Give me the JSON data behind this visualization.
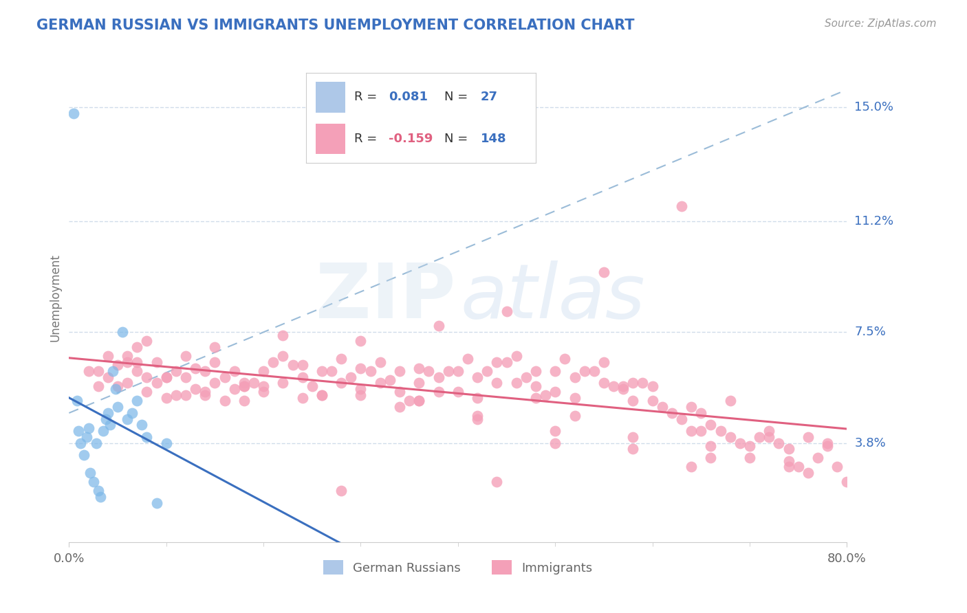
{
  "title": "GERMAN RUSSIAN VS IMMIGRANTS UNEMPLOYMENT CORRELATION CHART",
  "source_text": "Source: ZipAtlas.com",
  "ylabel": "Unemployment",
  "x_tick_labels": [
    "0.0%",
    "80.0%"
  ],
  "y_tick_labels": [
    "3.8%",
    "7.5%",
    "11.2%",
    "15.0%"
  ],
  "y_tick_values": [
    0.038,
    0.075,
    0.112,
    0.15
  ],
  "x_min": 0.0,
  "x_max": 0.8,
  "y_min": 0.005,
  "y_max": 0.168,
  "blue_scatter_color": "#7db8e8",
  "pink_scatter_color": "#f4a0b8",
  "blue_line_color": "#3a6fbf",
  "pink_line_color": "#e06080",
  "dashed_line_color": "#9bbcd8",
  "title_color": "#3a6fbf",
  "grid_color": "#d0dcea",
  "background_color": "#ffffff",
  "german_russian_x": [
    0.005,
    0.008,
    0.01,
    0.012,
    0.015,
    0.018,
    0.02,
    0.022,
    0.025,
    0.028,
    0.03,
    0.032,
    0.035,
    0.038,
    0.04,
    0.042,
    0.045,
    0.048,
    0.05,
    0.055,
    0.06,
    0.065,
    0.07,
    0.075,
    0.08,
    0.09,
    0.1
  ],
  "german_russian_y": [
    0.148,
    0.052,
    0.042,
    0.038,
    0.034,
    0.04,
    0.043,
    0.028,
    0.025,
    0.038,
    0.022,
    0.02,
    0.042,
    0.046,
    0.048,
    0.044,
    0.062,
    0.056,
    0.05,
    0.075,
    0.046,
    0.048,
    0.052,
    0.044,
    0.04,
    0.018,
    0.038
  ],
  "immigrants_x": [
    0.02,
    0.03,
    0.04,
    0.05,
    0.06,
    0.06,
    0.07,
    0.07,
    0.08,
    0.08,
    0.09,
    0.09,
    0.1,
    0.1,
    0.11,
    0.11,
    0.12,
    0.12,
    0.13,
    0.13,
    0.14,
    0.14,
    0.15,
    0.15,
    0.16,
    0.16,
    0.17,
    0.17,
    0.18,
    0.18,
    0.19,
    0.2,
    0.2,
    0.21,
    0.22,
    0.22,
    0.23,
    0.24,
    0.24,
    0.25,
    0.26,
    0.26,
    0.27,
    0.28,
    0.28,
    0.29,
    0.3,
    0.3,
    0.31,
    0.32,
    0.32,
    0.33,
    0.34,
    0.34,
    0.35,
    0.36,
    0.36,
    0.37,
    0.38,
    0.38,
    0.39,
    0.4,
    0.4,
    0.41,
    0.42,
    0.42,
    0.43,
    0.44,
    0.44,
    0.45,
    0.46,
    0.46,
    0.47,
    0.48,
    0.48,
    0.49,
    0.5,
    0.5,
    0.51,
    0.52,
    0.52,
    0.53,
    0.54,
    0.55,
    0.55,
    0.56,
    0.57,
    0.58,
    0.58,
    0.59,
    0.6,
    0.6,
    0.61,
    0.62,
    0.63,
    0.64,
    0.65,
    0.65,
    0.66,
    0.67,
    0.68,
    0.69,
    0.7,
    0.71,
    0.72,
    0.73,
    0.74,
    0.75,
    0.76,
    0.77,
    0.78,
    0.79,
    0.8,
    0.63,
    0.55,
    0.45,
    0.38,
    0.3,
    0.22,
    0.15,
    0.08,
    0.05,
    0.03,
    0.04,
    0.06,
    0.1,
    0.14,
    0.18,
    0.24,
    0.3,
    0.36,
    0.42,
    0.5,
    0.58,
    0.66,
    0.74,
    0.5,
    0.58,
    0.66,
    0.74,
    0.42,
    0.34,
    0.26,
    0.2,
    0.12,
    0.07,
    0.18,
    0.36,
    0.52,
    0.64,
    0.72,
    0.78,
    0.48,
    0.57,
    0.68,
    0.76,
    0.7,
    0.64,
    0.44,
    0.28
  ],
  "immigrants_y": [
    0.062,
    0.057,
    0.06,
    0.064,
    0.067,
    0.058,
    0.07,
    0.062,
    0.072,
    0.055,
    0.065,
    0.058,
    0.06,
    0.053,
    0.054,
    0.062,
    0.054,
    0.067,
    0.063,
    0.056,
    0.062,
    0.055,
    0.065,
    0.058,
    0.06,
    0.052,
    0.056,
    0.062,
    0.052,
    0.058,
    0.058,
    0.062,
    0.055,
    0.065,
    0.067,
    0.058,
    0.064,
    0.06,
    0.053,
    0.057,
    0.054,
    0.062,
    0.062,
    0.066,
    0.058,
    0.06,
    0.056,
    0.063,
    0.062,
    0.065,
    0.058,
    0.059,
    0.062,
    0.055,
    0.052,
    0.058,
    0.063,
    0.062,
    0.06,
    0.055,
    0.062,
    0.062,
    0.055,
    0.066,
    0.06,
    0.053,
    0.062,
    0.065,
    0.058,
    0.065,
    0.067,
    0.058,
    0.06,
    0.057,
    0.053,
    0.054,
    0.062,
    0.055,
    0.066,
    0.06,
    0.053,
    0.062,
    0.062,
    0.065,
    0.058,
    0.057,
    0.056,
    0.052,
    0.058,
    0.058,
    0.057,
    0.052,
    0.05,
    0.048,
    0.046,
    0.05,
    0.048,
    0.042,
    0.044,
    0.042,
    0.04,
    0.038,
    0.037,
    0.04,
    0.042,
    0.038,
    0.036,
    0.03,
    0.028,
    0.033,
    0.038,
    0.03,
    0.025,
    0.117,
    0.095,
    0.082,
    0.077,
    0.072,
    0.074,
    0.07,
    0.06,
    0.057,
    0.062,
    0.067,
    0.065,
    0.06,
    0.054,
    0.057,
    0.064,
    0.054,
    0.052,
    0.047,
    0.042,
    0.04,
    0.037,
    0.032,
    0.038,
    0.036,
    0.033,
    0.03,
    0.046,
    0.05,
    0.054,
    0.057,
    0.06,
    0.065,
    0.057,
    0.052,
    0.047,
    0.042,
    0.04,
    0.037,
    0.062,
    0.057,
    0.052,
    0.04,
    0.033,
    0.03,
    0.025,
    0.022
  ]
}
